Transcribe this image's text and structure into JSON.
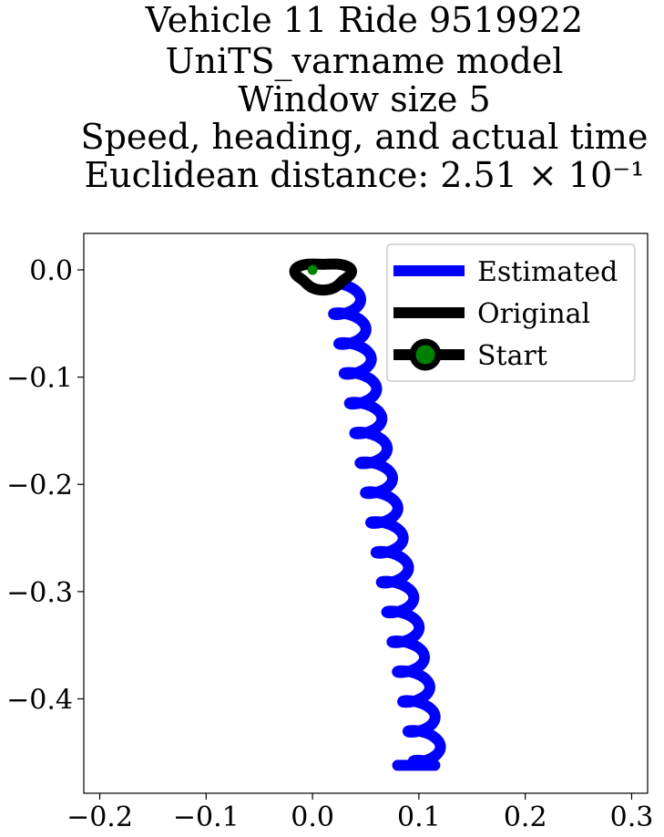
{
  "chart_data": {
    "type": "line",
    "title_lines": [
      "Vehicle 11 Ride 9519922",
      "UniTS_varname model",
      "Window size 5",
      "Speed, heading, and actual time",
      "Euclidean distance: 2.51 × 10⁻¹"
    ],
    "xlim": [
      -0.215,
      0.315
    ],
    "ylim": [
      -0.488,
      0.034
    ],
    "x_ticks": [
      -0.2,
      -0.1,
      0.0,
      0.1,
      0.2,
      0.3
    ],
    "x_tick_labels": [
      "−0.2",
      "−0.1",
      "0.0",
      "0.1",
      "0.2",
      "0.3"
    ],
    "y_ticks": [
      0.0,
      -0.1,
      -0.2,
      -0.3,
      -0.4
    ],
    "y_tick_labels": [
      "0.0",
      "−0.1",
      "−0.2",
      "−0.3",
      "−0.4"
    ],
    "grid": false,
    "legend_position": "top-right",
    "series": [
      {
        "name": "Estimated",
        "color": "#0000ff",
        "segments": [
          {
            "x0": 0.03,
            "y0": -0.02,
            "x1": 0.11,
            "y1": -0.465
          },
          {
            "x0": 0.08,
            "y0": -0.462,
            "x1": 0.115,
            "y1": -0.462
          }
        ],
        "amplitude": 0.014,
        "wiggle_count": 16
      },
      {
        "name": "Original",
        "color": "#000000",
        "loop_center": [
          0.01,
          -0.005
        ],
        "loop_radius": [
          0.025,
          0.012
        ]
      },
      {
        "name": "Start",
        "color": "#000000",
        "marker_color": "#008000",
        "x": 0.0,
        "y": 0.0
      }
    ]
  }
}
